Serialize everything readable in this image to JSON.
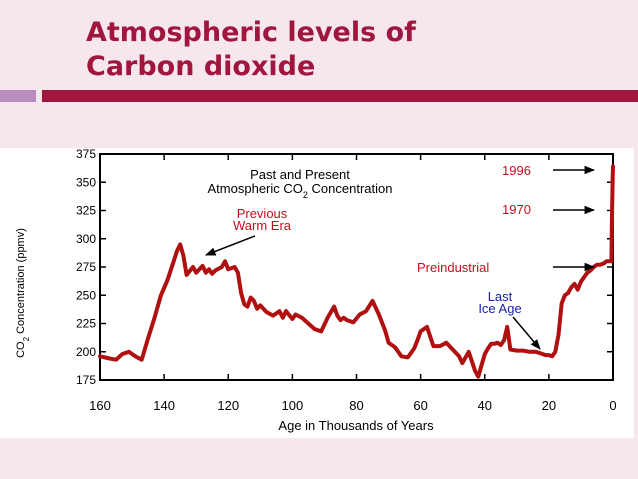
{
  "slide": {
    "title_line1": "Atmospheric levels of",
    "title_line2": "Carbon dioxide",
    "colors": {
      "title": "#a0163f",
      "accent_left": "#b98cc1",
      "accent_right": "#a0163f",
      "background": "#f6e6ee"
    }
  },
  "chart_data": {
    "type": "line",
    "title": "Past and Present",
    "subtitle_parts": [
      "Atmospheric CO",
      "2",
      " Concentration"
    ],
    "xlabel": "Age in Thousands of Years",
    "ylabel_parts": [
      "CO",
      "2",
      " Concentration (ppmv)"
    ],
    "xlim": [
      160,
      0
    ],
    "ylim": [
      175,
      375
    ],
    "x_ticks": [
      160,
      140,
      120,
      100,
      80,
      60,
      40,
      20,
      0
    ],
    "y_ticks": [
      375,
      350,
      325,
      300,
      275,
      250,
      225,
      200,
      175
    ],
    "line_color": "#b01010",
    "series": [
      {
        "x": [
          160,
          157,
          155,
          153,
          151,
          149,
          147,
          145,
          143,
          141,
          139,
          137,
          136,
          135,
          134,
          133,
          131,
          130,
          128,
          127,
          126,
          125,
          124,
          122,
          121,
          120,
          118,
          117,
          116,
          115,
          114,
          113,
          112,
          111,
          110,
          108,
          106,
          104,
          103,
          102,
          100,
          99,
          97,
          95,
          93,
          91,
          89,
          87,
          86,
          85,
          84,
          83,
          81,
          79,
          77,
          75,
          73,
          71,
          70,
          68,
          66,
          64,
          62,
          61,
          60,
          58,
          56,
          54,
          52,
          50,
          48,
          47,
          45,
          43,
          42,
          41,
          40,
          39,
          38,
          37,
          36,
          35,
          34,
          33,
          32,
          30,
          28,
          26,
          24,
          22,
          21,
          20,
          19,
          18,
          17,
          16,
          15,
          14,
          13,
          12,
          11,
          10,
          9,
          8,
          7,
          6,
          5,
          4,
          3,
          2,
          1,
          0.5,
          0.4,
          0.3,
          0.1,
          0
        ],
        "values": [
          196,
          194,
          193,
          198,
          200,
          196,
          193,
          212,
          230,
          250,
          263,
          280,
          289,
          295,
          285,
          268,
          275,
          270,
          276,
          270,
          273,
          269,
          272,
          275,
          280,
          273,
          275,
          270,
          252,
          242,
          240,
          248,
          245,
          238,
          241,
          235,
          232,
          236,
          230,
          236,
          229,
          233,
          230,
          225,
          220,
          218,
          230,
          240,
          232,
          228,
          230,
          228,
          226,
          233,
          236,
          245,
          233,
          218,
          208,
          204,
          196,
          195,
          203,
          210,
          218,
          222,
          205,
          205,
          208,
          202,
          196,
          190,
          200,
          183,
          178,
          188,
          198,
          203,
          207,
          207,
          208,
          206,
          210,
          222,
          202,
          201,
          201,
          200,
          200,
          198,
          197,
          197,
          196,
          200,
          215,
          243,
          250,
          252,
          257,
          260,
          255,
          262,
          266,
          270,
          272,
          275,
          277,
          277,
          278,
          280,
          280,
          280,
          300,
          320,
          355,
          364
        ]
      }
    ],
    "annotations": [
      {
        "text_lines": [
          "Previous",
          "Warm Era"
        ],
        "color": "#c0101e",
        "points_to": {
          "x": 134,
          "y": 285
        }
      },
      {
        "text_lines": [
          "1996"
        ],
        "color": "#c0101e",
        "points_to": {
          "x": 0,
          "y": 364
        }
      },
      {
        "text_lines": [
          "1970"
        ],
        "color": "#c0101e",
        "points_to": {
          "x": 0,
          "y": 325
        }
      },
      {
        "text_lines": [
          "Preindustrial"
        ],
        "color": "#c0101e",
        "points_to": {
          "x": 0,
          "y": 278
        }
      },
      {
        "text_lines": [
          "Last",
          "Ice Age"
        ],
        "color": "#1a20a8",
        "points_to": {
          "x": 18,
          "y": 197
        }
      }
    ]
  }
}
